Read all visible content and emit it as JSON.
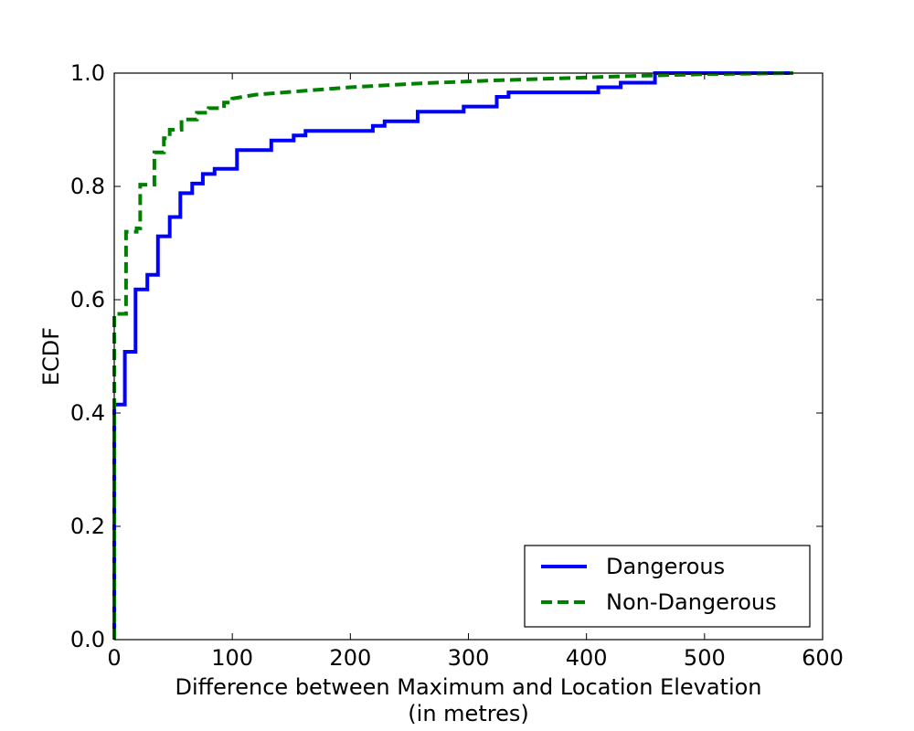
{
  "chart_data": {
    "type": "line",
    "title": "",
    "xlabel_line1": "Difference between Maximum and Location Elevation",
    "xlabel_line2": "(in metres)",
    "ylabel": "ECDF",
    "xlim": [
      0,
      600
    ],
    "ylim": [
      0.0,
      1.0
    ],
    "x_ticks": [
      "0",
      "100",
      "200",
      "300",
      "400",
      "500",
      "600"
    ],
    "y_ticks": [
      "0.0",
      "0.2",
      "0.4",
      "0.6",
      "0.8",
      "1.0"
    ],
    "grid": false,
    "legend_position": "lower-right",
    "series": [
      {
        "name": "Dangerous",
        "color": "#0000ff",
        "style": "solid",
        "step_points": [
          [
            0,
            0.0
          ],
          [
            0,
            0.415
          ],
          [
            9,
            0.415
          ],
          [
            9,
            0.508
          ],
          [
            18,
            0.508
          ],
          [
            18,
            0.618
          ],
          [
            28,
            0.618
          ],
          [
            28,
            0.644
          ],
          [
            37,
            0.644
          ],
          [
            37,
            0.712
          ],
          [
            47,
            0.712
          ],
          [
            47,
            0.746
          ],
          [
            56,
            0.746
          ],
          [
            56,
            0.788
          ],
          [
            66,
            0.788
          ],
          [
            66,
            0.805
          ],
          [
            75,
            0.805
          ],
          [
            75,
            0.822
          ],
          [
            85,
            0.822
          ],
          [
            85,
            0.831
          ],
          [
            104,
            0.831
          ],
          [
            104,
            0.864
          ],
          [
            133,
            0.864
          ],
          [
            133,
            0.881
          ],
          [
            152,
            0.881
          ],
          [
            152,
            0.89
          ],
          [
            162,
            0.89
          ],
          [
            162,
            0.898
          ],
          [
            219,
            0.898
          ],
          [
            219,
            0.907
          ],
          [
            229,
            0.907
          ],
          [
            229,
            0.915
          ],
          [
            257,
            0.915
          ],
          [
            257,
            0.932
          ],
          [
            296,
            0.932
          ],
          [
            296,
            0.941
          ],
          [
            324,
            0.941
          ],
          [
            324,
            0.958
          ],
          [
            334,
            0.958
          ],
          [
            334,
            0.966
          ],
          [
            410,
            0.966
          ],
          [
            410,
            0.975
          ],
          [
            429,
            0.975
          ],
          [
            429,
            0.983
          ],
          [
            458,
            0.983
          ],
          [
            458,
            1.0
          ],
          [
            575,
            1.0
          ]
        ]
      },
      {
        "name": "Non-Dangerous",
        "color": "#008000",
        "style": "dashed",
        "step_points": [
          [
            0,
            0.0
          ],
          [
            0,
            0.575
          ],
          [
            10,
            0.575
          ],
          [
            10,
            0.72
          ],
          [
            19,
            0.72
          ],
          [
            19,
            0.726
          ],
          [
            22,
            0.726
          ],
          [
            22,
            0.803
          ],
          [
            34,
            0.803
          ],
          [
            34,
            0.86
          ],
          [
            42,
            0.86
          ],
          [
            42,
            0.885
          ],
          [
            47,
            0.885
          ],
          [
            47,
            0.9
          ],
          [
            57,
            0.9
          ],
          [
            57,
            0.918
          ],
          [
            70,
            0.918
          ],
          [
            70,
            0.93
          ],
          [
            80,
            0.93
          ],
          [
            80,
            0.938
          ],
          [
            93,
            0.938
          ],
          [
            93,
            0.948
          ],
          [
            100,
            0.948
          ],
          [
            100,
            0.955
          ],
          [
            120,
            0.962
          ],
          [
            150,
            0.967
          ],
          [
            200,
            0.975
          ],
          [
            260,
            0.982
          ],
          [
            320,
            0.987
          ],
          [
            380,
            0.991
          ],
          [
            440,
            0.995
          ],
          [
            500,
            0.998
          ],
          [
            575,
            1.0
          ]
        ]
      }
    ]
  }
}
